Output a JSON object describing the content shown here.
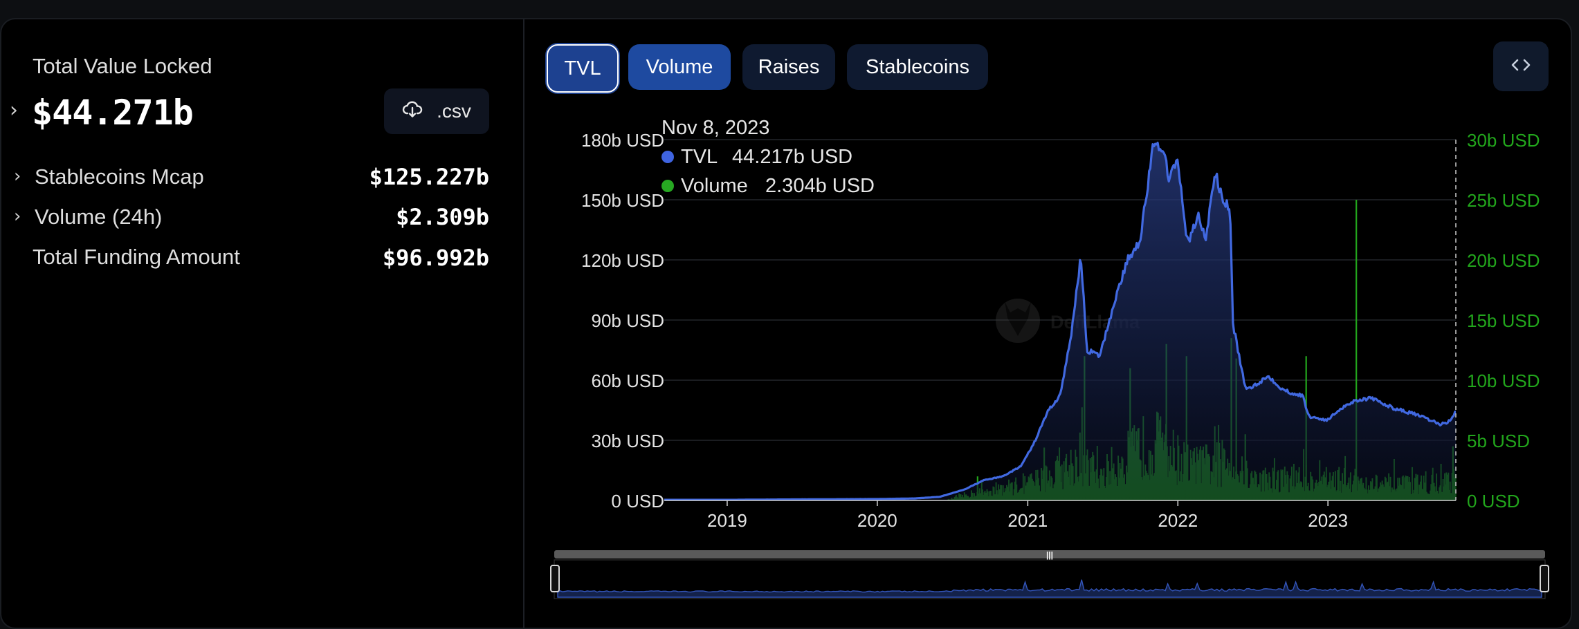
{
  "summary": {
    "tvl_label": "Total Value Locked",
    "tvl_value": "$44.271b",
    "csv_label": ".csv",
    "stats": [
      {
        "label": "Stablecoins Mcap",
        "value": "$125.227b",
        "expandable": true
      },
      {
        "label": "Volume (24h)",
        "value": "$2.309b",
        "expandable": true
      },
      {
        "label": "Total Funding Amount",
        "value": "$96.992b",
        "expandable": false
      }
    ]
  },
  "tabs": [
    {
      "label": "TVL",
      "active": true
    },
    {
      "label": "Volume",
      "active": true
    },
    {
      "label": "Raises",
      "active": false
    },
    {
      "label": "Stablecoins",
      "active": false
    }
  ],
  "icons": {
    "tvl_expand": "chevron-right-icon",
    "csv": "cloud-download-icon",
    "embed": "code-brackets-icon",
    "watermark": "defillama-logo"
  },
  "watermark_text": "DefiLlama",
  "tooltip": {
    "date": "Nov 8, 2023",
    "rows": [
      {
        "name": "TVL",
        "value": "44.217b USD",
        "color": "#3f64e0"
      },
      {
        "name": "Volume",
        "value": "2.304b USD",
        "color": "#27a822"
      }
    ]
  },
  "colors": {
    "tvl": "#4169e1",
    "volume": "#22a61c",
    "right_axis": "#22a61c",
    "accent": "#1d4190"
  },
  "chart_data": {
    "type": "area",
    "x_ticks": [
      "2019",
      "2020",
      "2021",
      "2022",
      "2023"
    ],
    "y_left": {
      "ticks": [
        "0 USD",
        "30b USD",
        "60b USD",
        "90b USD",
        "120b USD",
        "150b USD",
        "180b USD"
      ],
      "range": [
        0,
        180
      ]
    },
    "y_right": {
      "ticks": [
        "0 USD",
        "5b USD",
        "10b USD",
        "15b USD",
        "20b USD",
        "25b USD",
        "30b USD"
      ],
      "range": [
        0,
        30
      ]
    },
    "x_range": [
      "2018-08-01",
      "2023-11-08"
    ],
    "grid": true,
    "series": [
      {
        "name": "TVL",
        "type": "area",
        "axis": "left",
        "unit": "b USD",
        "points": [
          [
            "2018-08-01",
            0.3
          ],
          [
            "2019-01-01",
            0.3
          ],
          [
            "2019-06-01",
            0.5
          ],
          [
            "2020-01-01",
            0.7
          ],
          [
            "2020-04-01",
            1.0
          ],
          [
            "2020-06-01",
            1.8
          ],
          [
            "2020-08-01",
            5.5
          ],
          [
            "2020-09-15",
            10
          ],
          [
            "2020-11-01",
            12
          ],
          [
            "2020-12-15",
            17
          ],
          [
            "2021-01-15",
            28
          ],
          [
            "2021-02-20",
            45
          ],
          [
            "2021-03-20",
            52
          ],
          [
            "2021-04-15",
            80
          ],
          [
            "2021-05-10",
            122
          ],
          [
            "2021-05-25",
            75
          ],
          [
            "2021-06-25",
            72
          ],
          [
            "2021-08-01",
            100
          ],
          [
            "2021-09-01",
            120
          ],
          [
            "2021-10-01",
            130
          ],
          [
            "2021-11-01",
            175
          ],
          [
            "2021-11-20",
            178
          ],
          [
            "2021-12-10",
            162
          ],
          [
            "2022-01-01",
            168
          ],
          [
            "2022-01-25",
            128
          ],
          [
            "2022-02-20",
            142
          ],
          [
            "2022-03-10",
            130
          ],
          [
            "2022-04-01",
            164
          ],
          [
            "2022-04-20",
            150
          ],
          [
            "2022-05-08",
            145
          ],
          [
            "2022-05-15",
            88
          ],
          [
            "2022-06-15",
            55
          ],
          [
            "2022-07-10",
            58
          ],
          [
            "2022-08-10",
            62
          ],
          [
            "2022-09-15",
            55
          ],
          [
            "2022-11-01",
            52
          ],
          [
            "2022-11-15",
            42
          ],
          [
            "2022-12-31",
            40
          ],
          [
            "2023-02-01",
            46
          ],
          [
            "2023-03-10",
            50
          ],
          [
            "2023-04-15",
            51
          ],
          [
            "2023-06-10",
            46
          ],
          [
            "2023-08-01",
            43
          ],
          [
            "2023-10-01",
            38
          ],
          [
            "2023-10-20",
            39
          ],
          [
            "2023-11-08",
            44.2
          ]
        ]
      },
      {
        "name": "Volume",
        "type": "bar",
        "axis": "right",
        "unit": "b USD",
        "envelope": [
          [
            "2020-06-15",
            0.0
          ],
          [
            "2020-08-01",
            0.6
          ],
          [
            "2020-10-01",
            1.2
          ],
          [
            "2021-01-01",
            2.0
          ],
          [
            "2021-03-01",
            3.0
          ],
          [
            "2021-05-01",
            4.5
          ],
          [
            "2021-07-01",
            3.2
          ],
          [
            "2021-09-01",
            5.0
          ],
          [
            "2021-11-01",
            7.0
          ],
          [
            "2021-12-15",
            5.5
          ],
          [
            "2022-02-01",
            4.0
          ],
          [
            "2022-05-01",
            4.5
          ],
          [
            "2022-07-01",
            2.5
          ],
          [
            "2022-11-01",
            2.6
          ],
          [
            "2023-03-01",
            2.4
          ],
          [
            "2023-06-01",
            1.7
          ],
          [
            "2023-11-08",
            2.3
          ]
        ],
        "spikes": [
          [
            "2020-09-01",
            2.0
          ],
          [
            "2021-02-10",
            4.4
          ],
          [
            "2021-05-19",
            12.0
          ],
          [
            "2021-09-07",
            11.0
          ],
          [
            "2021-12-04",
            13.0
          ],
          [
            "2022-01-22",
            12.0
          ],
          [
            "2022-05-11",
            13.5
          ],
          [
            "2022-05-23",
            11.8
          ],
          [
            "2022-06-14",
            5.5
          ],
          [
            "2022-11-09",
            12.0
          ],
          [
            "2023-03-11",
            25.0
          ],
          [
            "2023-11-01",
            4.5
          ]
        ]
      }
    ],
    "navigator": {
      "handle": "|||"
    }
  }
}
